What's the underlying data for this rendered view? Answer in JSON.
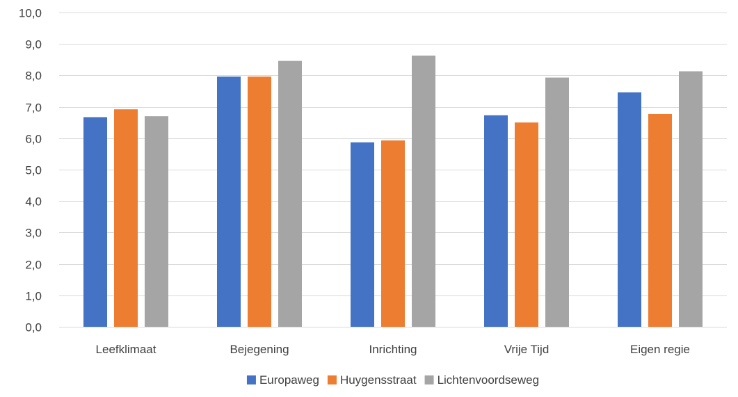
{
  "chart_data": {
    "type": "bar",
    "categories": [
      "Leefklimaat",
      "Bejegening",
      "Inrichting",
      "Vrije Tijd",
      "Eigen regie"
    ],
    "series": [
      {
        "name": "Europaweg",
        "color": "#4472C4",
        "values": [
          6.67,
          7.96,
          5.87,
          6.73,
          7.46
        ]
      },
      {
        "name": "Huygensstraat",
        "color": "#ED7D31",
        "values": [
          6.92,
          7.96,
          5.93,
          6.5,
          6.77
        ]
      },
      {
        "name": "Lichtenvoordseweg",
        "color": "#A5A5A5",
        "values": [
          6.7,
          8.46,
          8.63,
          7.93,
          8.13
        ]
      }
    ],
    "ylim": [
      0,
      10
    ],
    "yticks": [
      "0,0",
      "1,0",
      "2,0",
      "3,0",
      "4,0",
      "5,0",
      "6,0",
      "7,0",
      "8,0",
      "9,0",
      "10,0"
    ],
    "grid": true,
    "legend_position": "bottom",
    "title": "",
    "xlabel": "",
    "ylabel": ""
  }
}
